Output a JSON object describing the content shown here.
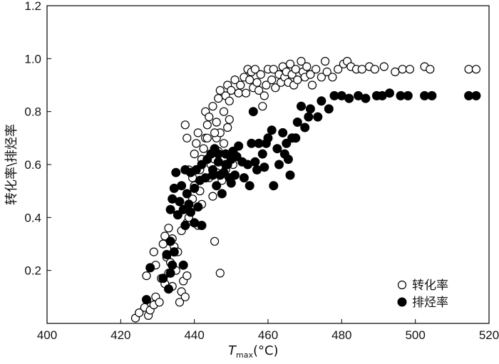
{
  "chart_data": {
    "type": "scatter",
    "title": "",
    "xlabel": {
      "main": "T",
      "sub": "max",
      "unit": "(°C)"
    },
    "ylabel": "转化率\\排烃率",
    "xlim": [
      400,
      520
    ],
    "ylim": [
      0,
      1.2
    ],
    "xticks": [
      "400",
      "420",
      "440",
      "460",
      "480",
      "500",
      "520"
    ],
    "yticks": [
      "",
      "0.2",
      "0.4",
      "0.6",
      "0.8",
      "1.0",
      "1.2"
    ],
    "legend_position": "bottom-right",
    "series": [
      {
        "name": "转化率",
        "marker": "open-circle",
        "points": [
          [
            424.0,
            0.02
          ],
          [
            425.0,
            0.04
          ],
          [
            426.5,
            0.06
          ],
          [
            427.5,
            0.03
          ],
          [
            428.0,
            0.05
          ],
          [
            429.0,
            0.07
          ],
          [
            429.5,
            0.1
          ],
          [
            430.5,
            0.08
          ],
          [
            427.0,
            0.18
          ],
          [
            429.5,
            0.22
          ],
          [
            431.0,
            0.17
          ],
          [
            432.0,
            0.15
          ],
          [
            433.0,
            0.19
          ],
          [
            434.0,
            0.14
          ],
          [
            435.0,
            0.2
          ],
          [
            436.5,
            0.12
          ],
          [
            437.5,
            0.1
          ],
          [
            436.0,
            0.08
          ],
          [
            429.0,
            0.27
          ],
          [
            431.5,
            0.3
          ],
          [
            432.5,
            0.25
          ],
          [
            433.5,
            0.23
          ],
          [
            434.5,
            0.29
          ],
          [
            435.5,
            0.27
          ],
          [
            437.0,
            0.16
          ],
          [
            438.0,
            0.18
          ],
          [
            432.0,
            0.33
          ],
          [
            433.0,
            0.36
          ],
          [
            434.0,
            0.32
          ],
          [
            436.5,
            0.35
          ],
          [
            438.0,
            0.38
          ],
          [
            438.5,
            0.4
          ],
          [
            439.0,
            0.43
          ],
          [
            439.5,
            0.47
          ],
          [
            440.0,
            0.52
          ],
          [
            441.0,
            0.37
          ],
          [
            441.5,
            0.5
          ],
          [
            442.0,
            0.45
          ],
          [
            437.5,
            0.75
          ],
          [
            438.0,
            0.7
          ],
          [
            438.5,
            0.58
          ],
          [
            439.5,
            0.55
          ],
          [
            440.0,
            0.64
          ],
          [
            440.5,
            0.68
          ],
          [
            441.0,
            0.72
          ],
          [
            441.5,
            0.58
          ],
          [
            442.0,
            0.62
          ],
          [
            442.5,
            0.66
          ],
          [
            443.0,
            0.7
          ],
          [
            443.5,
            0.75
          ],
          [
            443.0,
            0.8
          ],
          [
            444.0,
            0.55
          ],
          [
            444.5,
            0.6
          ],
          [
            445.0,
            0.48
          ],
          [
            445.5,
            0.62
          ],
          [
            446.0,
            0.57
          ],
          [
            446.5,
            0.65
          ],
          [
            446.0,
            0.7
          ],
          [
            447.0,
            0.72
          ],
          [
            447.5,
            0.54
          ],
          [
            448.0,
            0.68
          ],
          [
            448.5,
            0.58
          ],
          [
            449.0,
            0.74
          ],
          [
            449.5,
            0.77
          ],
          [
            450.5,
            0.6
          ],
          [
            443.5,
            0.7
          ],
          [
            444.0,
            0.78
          ],
          [
            445.0,
            0.82
          ],
          [
            445.5,
            0.72
          ],
          [
            446.0,
            0.76
          ],
          [
            446.5,
            0.85
          ],
          [
            447.0,
            0.88
          ],
          [
            448.0,
            0.8
          ],
          [
            448.5,
            0.86
          ],
          [
            445.5,
            0.31
          ],
          [
            447.0,
            0.19
          ],
          [
            449.0,
            0.9
          ],
          [
            449.5,
            0.84
          ],
          [
            450.0,
            0.88
          ],
          [
            451.0,
            0.92
          ],
          [
            452.0,
            0.87
          ],
          [
            452.5,
            0.9
          ],
          [
            453.5,
            0.93
          ],
          [
            454.0,
            0.87
          ],
          [
            454.5,
            0.96
          ],
          [
            455.0,
            0.92
          ],
          [
            455.5,
            0.95
          ],
          [
            456.0,
            0.89
          ],
          [
            456.5,
            0.96
          ],
          [
            457.0,
            0.91
          ],
          [
            457.5,
            0.88
          ],
          [
            458.0,
            0.94
          ],
          [
            458.5,
            0.82
          ],
          [
            459.0,
            0.86
          ],
          [
            459.5,
            0.9
          ],
          [
            460.0,
            0.96
          ],
          [
            461.0,
            0.92
          ],
          [
            461.5,
            0.96
          ],
          [
            462.0,
            0.89
          ],
          [
            463.0,
            0.94
          ],
          [
            463.5,
            0.91
          ],
          [
            464.0,
            0.97
          ],
          [
            464.5,
            0.93
          ],
          [
            465.0,
            0.95
          ],
          [
            465.5,
            0.91
          ],
          [
            466.0,
            0.98
          ],
          [
            466.5,
            0.94
          ],
          [
            467.0,
            0.9
          ],
          [
            467.5,
            0.96
          ],
          [
            468.0,
            0.92
          ],
          [
            469.0,
            0.99
          ],
          [
            469.5,
            0.95
          ],
          [
            470.0,
            0.93
          ],
          [
            470.5,
            0.97
          ],
          [
            471.5,
            0.94
          ],
          [
            472.0,
            0.9
          ],
          [
            473.0,
            0.96
          ],
          [
            474.5,
            0.93
          ],
          [
            475.5,
            0.99
          ],
          [
            476.0,
            0.95
          ],
          [
            477.5,
            0.93
          ],
          [
            479.0,
            0.96
          ],
          [
            480.5,
            0.98
          ],
          [
            481.5,
            0.99
          ],
          [
            482.5,
            0.97
          ],
          [
            484.0,
            0.96
          ],
          [
            485.5,
            0.96
          ],
          [
            487.5,
            0.97
          ],
          [
            489.0,
            0.96
          ],
          [
            491.5,
            0.97
          ],
          [
            494.5,
            0.95
          ],
          [
            496.5,
            0.96
          ],
          [
            498.5,
            0.96
          ],
          [
            502.5,
            0.97
          ],
          [
            504.0,
            0.96
          ],
          [
            514.5,
            0.96
          ],
          [
            516.5,
            0.96
          ]
        ]
      },
      {
        "name": "排烃率",
        "marker": "filled-circle",
        "points": [
          [
            428.0,
            0.21
          ],
          [
            427.0,
            0.09
          ],
          [
            431.5,
            0.17
          ],
          [
            433.0,
            0.13
          ],
          [
            433.5,
            0.19
          ],
          [
            434.0,
            0.22
          ],
          [
            432.5,
            0.26
          ],
          [
            433.5,
            0.31
          ],
          [
            434.5,
            0.27
          ],
          [
            437.0,
            0.22
          ],
          [
            433.5,
            0.43
          ],
          [
            434.0,
            0.47
          ],
          [
            434.5,
            0.51
          ],
          [
            435.5,
            0.41
          ],
          [
            436.0,
            0.46
          ],
          [
            437.0,
            0.43
          ],
          [
            437.5,
            0.37
          ],
          [
            438.0,
            0.49
          ],
          [
            438.5,
            0.45
          ],
          [
            439.0,
            0.42
          ],
          [
            440.0,
            0.38
          ],
          [
            441.0,
            0.44
          ],
          [
            442.0,
            0.37
          ],
          [
            435.0,
            0.57
          ],
          [
            436.5,
            0.52
          ],
          [
            437.5,
            0.58
          ],
          [
            439.0,
            0.57
          ],
          [
            440.0,
            0.51
          ],
          [
            440.5,
            0.58
          ],
          [
            441.5,
            0.54
          ],
          [
            442.0,
            0.6
          ],
          [
            443.0,
            0.55
          ],
          [
            443.5,
            0.62
          ],
          [
            444.5,
            0.64
          ],
          [
            445.0,
            0.58
          ],
          [
            445.5,
            0.66
          ],
          [
            446.0,
            0.52
          ],
          [
            446.5,
            0.61
          ],
          [
            447.0,
            0.56
          ],
          [
            447.5,
            0.49
          ],
          [
            448.0,
            0.57
          ],
          [
            448.5,
            0.64
          ],
          [
            449.0,
            0.6
          ],
          [
            449.5,
            0.55
          ],
          [
            450.0,
            0.62
          ],
          [
            450.5,
            0.65
          ],
          [
            451.0,
            0.56
          ],
          [
            451.5,
            0.63
          ],
          [
            452.0,
            0.67
          ],
          [
            453.0,
            0.61
          ],
          [
            453.5,
            0.55
          ],
          [
            454.5,
            0.6
          ],
          [
            455.0,
            0.52
          ],
          [
            455.5,
            0.68
          ],
          [
            456.5,
            0.61
          ],
          [
            457.0,
            0.58
          ],
          [
            457.5,
            0.68
          ],
          [
            458.5,
            0.64
          ],
          [
            459.0,
            0.59
          ],
          [
            459.5,
            0.68
          ],
          [
            460.0,
            0.7
          ],
          [
            461.0,
            0.73
          ],
          [
            461.5,
            0.52
          ],
          [
            462.5,
            0.66
          ],
          [
            463.0,
            0.6
          ],
          [
            464.0,
            0.72
          ],
          [
            464.5,
            0.64
          ],
          [
            465.0,
            0.68
          ],
          [
            465.5,
            0.62
          ],
          [
            466.0,
            0.56
          ],
          [
            466.5,
            0.7
          ],
          [
            467.5,
            0.7
          ],
          [
            468.0,
            0.76
          ],
          [
            469.0,
            0.82
          ],
          [
            470.0,
            0.74
          ],
          [
            471.0,
            0.78
          ],
          [
            471.5,
            0.81
          ],
          [
            473.5,
            0.78
          ],
          [
            474.5,
            0.84
          ],
          [
            476.5,
            0.81
          ],
          [
            478.0,
            0.86
          ],
          [
            480.0,
            0.86
          ],
          [
            482.0,
            0.85
          ],
          [
            484.5,
            0.86
          ],
          [
            486.5,
            0.85
          ],
          [
            489.5,
            0.86
          ],
          [
            491.0,
            0.86
          ],
          [
            493.0,
            0.87
          ],
          [
            496.0,
            0.86
          ],
          [
            498.0,
            0.86
          ],
          [
            502.5,
            0.86
          ],
          [
            504.5,
            0.86
          ],
          [
            514.5,
            0.86
          ],
          [
            516.5,
            0.86
          ],
          [
            446.5,
            0.64
          ],
          [
            456.0,
            0.8
          ],
          [
            448.5,
            0.6
          ],
          [
            445.0,
            0.56
          ],
          [
            450.0,
            0.53
          ]
        ]
      }
    ]
  }
}
